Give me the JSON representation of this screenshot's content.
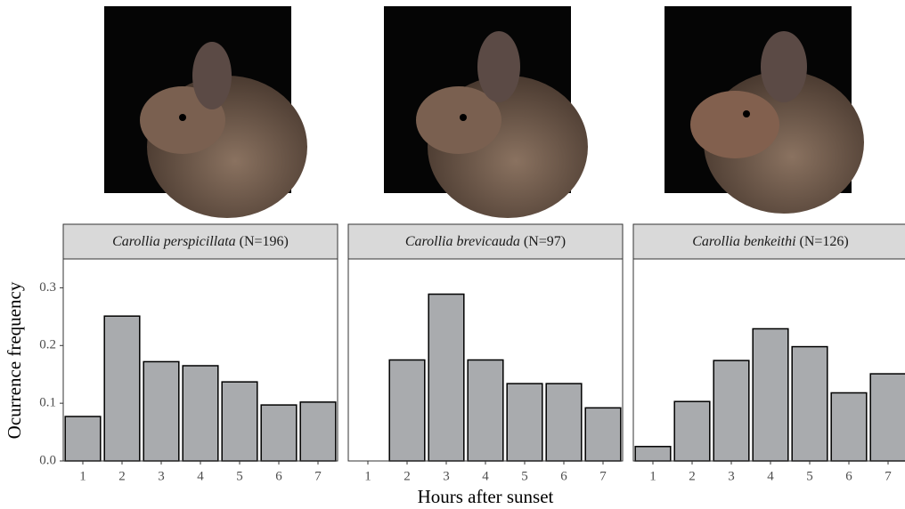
{
  "y_label": "Ocurrence frequency",
  "x_label": "Hours after sunset",
  "chart_data": [
    {
      "type": "bar",
      "species": "Carollia perspicillata",
      "n_label": "(N=196)",
      "categories": [
        "1",
        "2",
        "3",
        "4",
        "5",
        "6",
        "7"
      ],
      "values": [
        0.077,
        0.251,
        0.172,
        0.165,
        0.137,
        0.097,
        0.102
      ],
      "color": "#a9abae",
      "ylim": [
        0,
        0.35
      ],
      "yticks": [
        {
          "value": 0,
          "label": "0.0"
        },
        0.1,
        0.2,
        0.3
      ]
    },
    {
      "type": "bar",
      "species": "Carollia brevicauda",
      "n_label": "(N=97)",
      "categories": [
        "1",
        "2",
        "3",
        "4",
        "5",
        "6",
        "7"
      ],
      "values": [
        0,
        0.175,
        0.289,
        0.175,
        0.134,
        0.134,
        0.092
      ],
      "color": "#a9abae",
      "ylim": [
        0,
        0.35
      ]
    },
    {
      "type": "bar",
      "species": "Carollia benkeithi",
      "n_label": "(N=126)",
      "categories": [
        "1",
        "2",
        "3",
        "4",
        "5",
        "6",
        "7"
      ],
      "values": [
        0.025,
        0.103,
        0.174,
        0.229,
        0.198,
        0.118,
        0.151
      ],
      "color": "#a9abae",
      "ylim": [
        0,
        0.35
      ]
    }
  ]
}
